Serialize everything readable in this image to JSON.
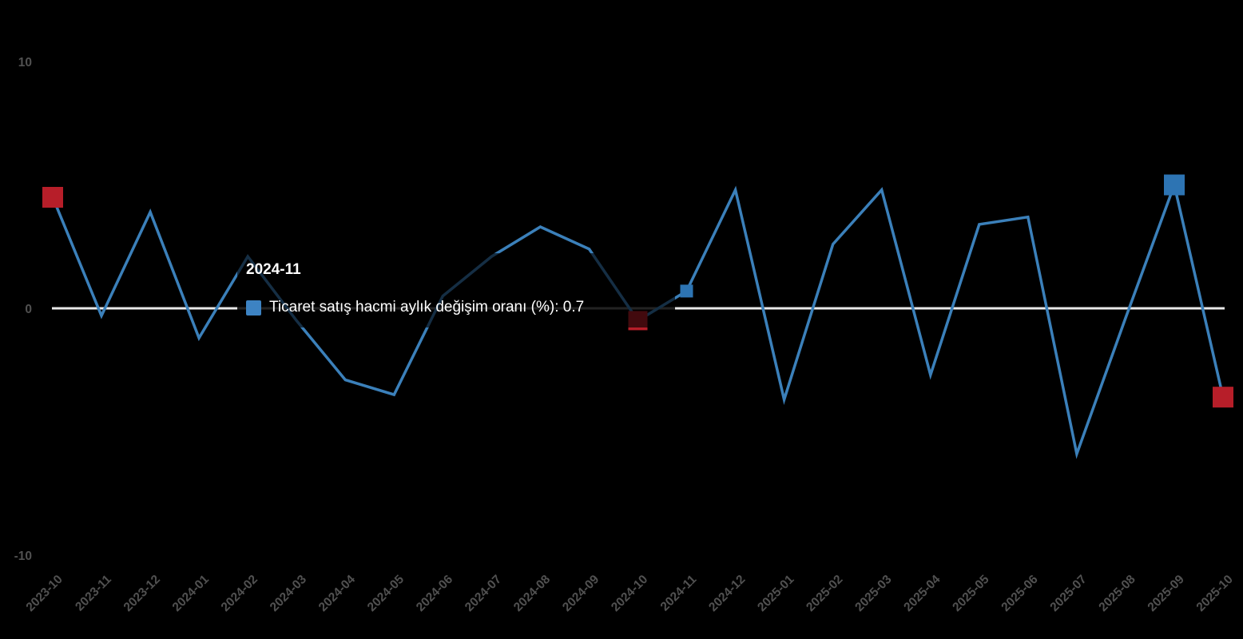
{
  "chart_data": {
    "type": "line",
    "title": "",
    "x": [
      "2023-10",
      "2023-11",
      "2023-12",
      "2024-01",
      "2024-02",
      "2024-03",
      "2024-04",
      "2024-05",
      "2024-06",
      "2024-07",
      "2024-08",
      "2024-09",
      "2024-10",
      "2024-11",
      "2024-12",
      "2025-01",
      "2025-02",
      "2025-03",
      "2025-04",
      "2025-05",
      "2025-06",
      "2025-07",
      "2025-08",
      "2025-09",
      "2025-10"
    ],
    "series": [
      {
        "name": "Ticaret satış hacmi aylık değişim oranı (%)",
        "values": [
          4.5,
          -0.3,
          3.9,
          -1.2,
          2.1,
          -0.5,
          -2.9,
          -3.5,
          0.5,
          2.1,
          3.3,
          2.4,
          -0.5,
          0.7,
          4.8,
          -3.7,
          2.6,
          4.8,
          -2.7,
          3.4,
          3.7,
          -5.9,
          -0.4,
          5.0,
          -3.6
        ]
      }
    ],
    "y_ticks": [
      {
        "label": "10",
        "value": 10
      },
      {
        "label": "0",
        "value": 0
      },
      {
        "label": "-10",
        "value": -10
      }
    ],
    "ylim": [
      -10,
      10
    ],
    "grid": false,
    "legend_position": "none",
    "zero_line": true,
    "highlighted_points": [
      {
        "month": "2023-10",
        "index": 0,
        "color": "red",
        "size": 26
      },
      {
        "month": "2024-10",
        "index": 12,
        "color": "red",
        "size": 24
      },
      {
        "month": "2025-10",
        "index": 24,
        "color": "red",
        "size": 26
      },
      {
        "month": "2025-09",
        "index": 23,
        "color": "blue",
        "size": 26
      },
      {
        "month": "2024-11",
        "index": 13,
        "color": "blue",
        "size": 16,
        "hovered": true
      }
    ],
    "colors": {
      "background": "#000000",
      "line": "#3b80ba",
      "marker_blue": "#2d74b3",
      "marker_red": "#b71e29",
      "zero_line": "#e9e9e9",
      "axis_text": "#515151",
      "tooltip_text": "#ffffff",
      "tooltip_marker": "#3d83c3"
    }
  },
  "tooltip": {
    "title": "2024-11",
    "label_with_value": "Ticaret satış hacmi aylık değişim oranı (%): 0.7",
    "series_name": "Ticaret satış hacmi aylık değişim oranı (%)",
    "value": "0.7"
  }
}
